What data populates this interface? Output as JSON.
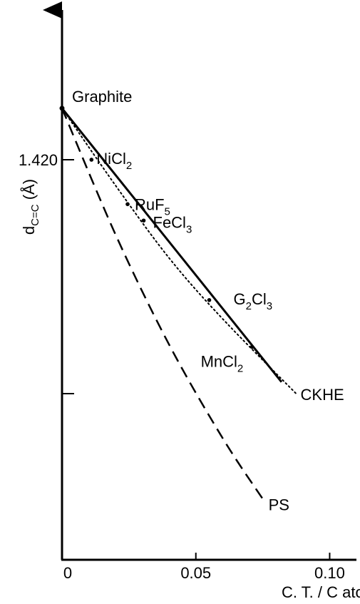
{
  "chart_data": {
    "type": "line",
    "title": "",
    "xlabel": "C. T. / C atom",
    "ylabel_main": "d",
    "ylabel_sub": "C=C",
    "ylabel_unit": " (Å)",
    "x_ticks": [
      {
        "value": 0,
        "label": "0"
      },
      {
        "value": 0.05,
        "label": "0.05"
      },
      {
        "value": 0.1,
        "label": "0.10"
      }
    ],
    "y_ticks": [
      {
        "value": 1.42,
        "label": "1.420"
      },
      {
        "value": 1.41,
        "label": ""
      }
    ],
    "xlim": [
      0,
      0.11
    ],
    "ylim": [
      1.4029,
      1.4264
    ],
    "grid": false,
    "series": [
      {
        "id": "linear",
        "style": "solid",
        "x": [
          0,
          0.082
        ],
        "y": [
          1.4222,
          1.4105
        ]
      },
      {
        "id": "CKHE",
        "name": "CKHE",
        "style": "dotted",
        "x": [
          0,
          0.02,
          0.04,
          0.06,
          0.0875
        ],
        "y": [
          1.4222,
          1.4189,
          1.4158,
          1.4132,
          1.41
        ]
      },
      {
        "id": "PS",
        "name": "PS",
        "style": "dashed",
        "x": [
          0,
          0.02,
          0.04,
          0.06,
          0.075
        ],
        "y": [
          1.4222,
          1.4168,
          1.4121,
          1.4081,
          1.4055
        ]
      }
    ],
    "points": [
      {
        "id": "graphite",
        "x": 0,
        "y": 1.4222,
        "label_main": "Graphite",
        "label_sub": ""
      },
      {
        "id": "nicl2",
        "x": 0.011,
        "y": 1.42,
        "label_main": "NiCl",
        "label_sub": "2"
      },
      {
        "id": "ruf5",
        "x": 0.0245,
        "y": 1.4181,
        "label_main": "RuF",
        "label_sub": "5"
      },
      {
        "id": "fecl3",
        "x": 0.0305,
        "y": 1.4174,
        "label_main": "FeCl",
        "label_sub": "3"
      },
      {
        "id": "g2cl3",
        "x": 0.055,
        "y": 1.414,
        "label_main": "G",
        "label_sub": "2",
        "label_main2": "Cl",
        "label_sub2": "3"
      },
      {
        "id": "mncl2",
        "x": 0.071,
        "y": 1.412,
        "label_main": "MnCl",
        "label_sub": "2"
      }
    ]
  }
}
